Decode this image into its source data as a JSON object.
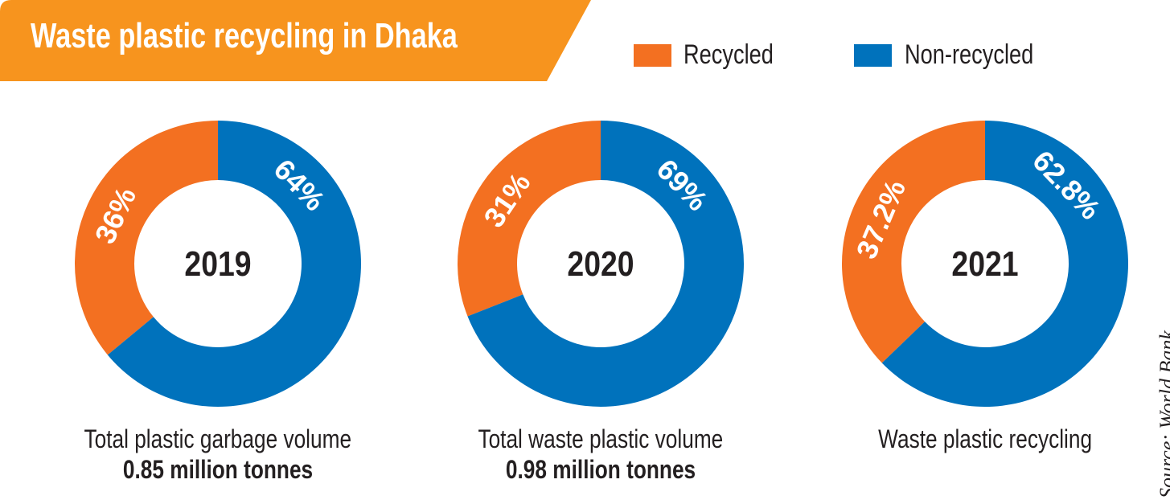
{
  "colors": {
    "banner": "#F7941E",
    "recycled": "#F37021",
    "non_recycled": "#0072BC"
  },
  "chart_data": {
    "type": "pie",
    "title": "Waste plastic recycling in Dhaka",
    "legend": {
      "placement": "top-right",
      "entries": [
        "Recycled",
        "Non-recycled"
      ]
    },
    "charts": [
      {
        "center_label": "2019",
        "caption": "Total plastic garbage volume",
        "subcaption": "0.85 million tonnes",
        "slices": [
          {
            "name": "Recycled",
            "value": 36,
            "label": "36%"
          },
          {
            "name": "Non-recycled",
            "value": 64,
            "label": "64%"
          }
        ]
      },
      {
        "center_label": "2020",
        "caption": "Total waste plastic volume",
        "subcaption": "0.98 million tonnes",
        "slices": [
          {
            "name": "Recycled",
            "value": 31,
            "label": "31%"
          },
          {
            "name": "Non-recycled",
            "value": 69,
            "label": "69%"
          }
        ]
      },
      {
        "center_label": "2021",
        "caption": "Waste plastic recycling",
        "subcaption": "",
        "slices": [
          {
            "name": "Recycled",
            "value": 37.2,
            "label": "37.2%"
          },
          {
            "name": "Non-recycled",
            "value": 62.8,
            "label": "62.8%"
          }
        ]
      }
    ]
  },
  "source": "Source: World Bank"
}
